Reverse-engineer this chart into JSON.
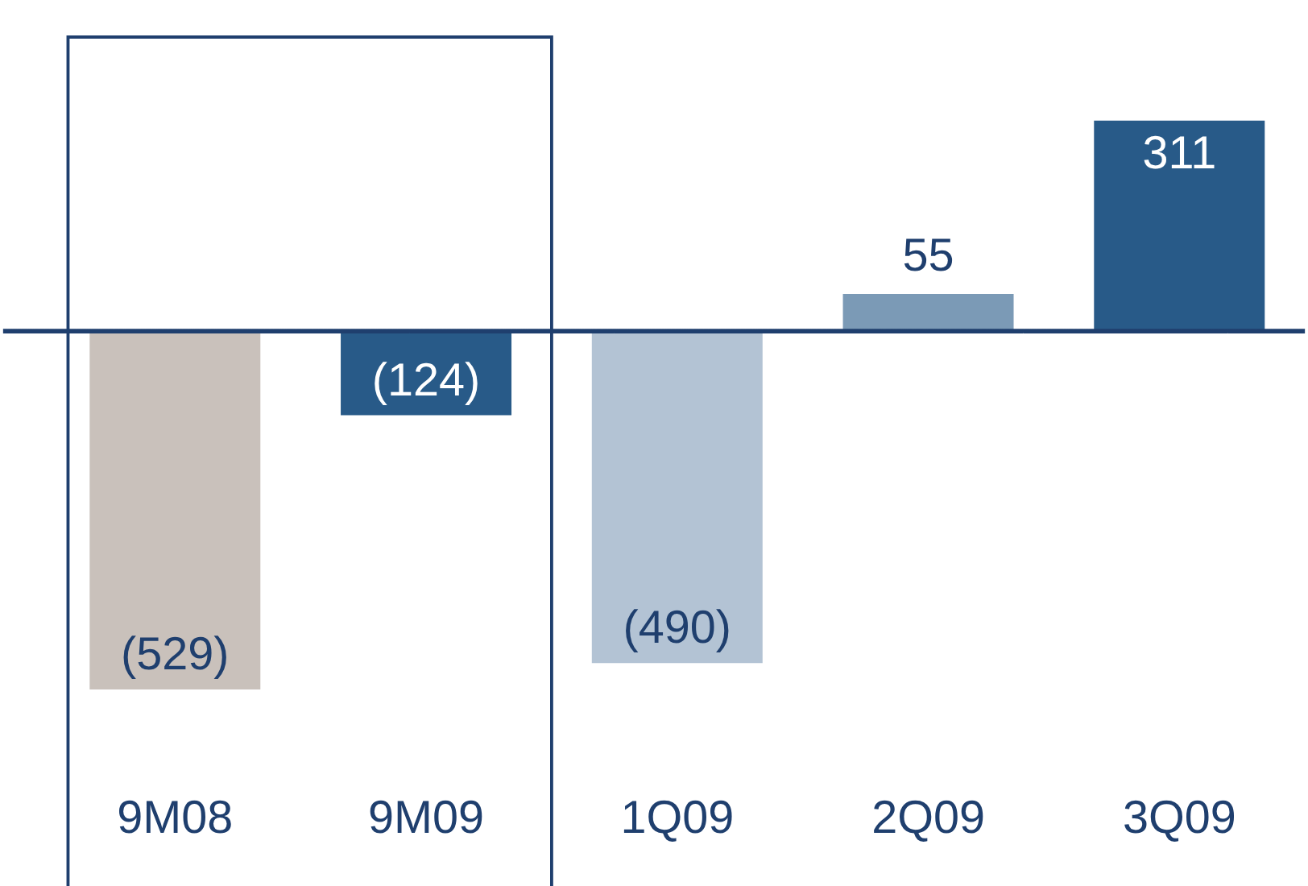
{
  "chart_data": {
    "type": "bar",
    "categories": [
      "9M08",
      "9M09",
      "1Q09",
      "2Q09",
      "3Q09"
    ],
    "values": [
      -529,
      -124,
      -490,
      55,
      311
    ],
    "colors": [
      "#c9c1bb",
      "#285a88",
      "#b3c3d4",
      "#7b9ab6",
      "#285a88"
    ],
    "value_labels": [
      "(529)",
      "(124)",
      "(490)",
      "55",
      "311"
    ],
    "ref_lines": [
      {
        "axis": "y",
        "value": 0,
        "color": "#1f3f6e"
      }
    ],
    "tick_labels": "x"
  }
}
